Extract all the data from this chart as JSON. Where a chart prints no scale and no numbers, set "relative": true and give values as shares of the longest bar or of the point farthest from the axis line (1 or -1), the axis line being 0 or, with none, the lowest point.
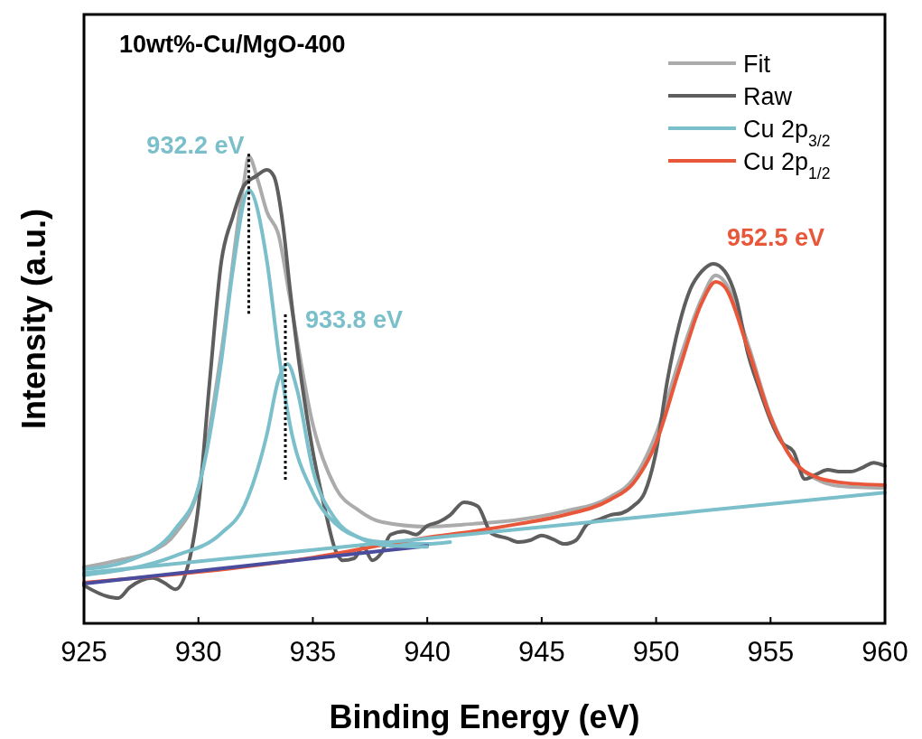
{
  "chart_data": {
    "type": "line",
    "relative": true,
    "xlabel": "Binding Energy (eV)",
    "ylabel": "Intensity (a.u.)",
    "xlim": [
      925,
      960
    ],
    "xticks": [
      925,
      930,
      935,
      940,
      945,
      950,
      955,
      960
    ],
    "legend": "top right",
    "line_style": "solid",
    "annotations": [
      "10wt%-Cu/MgO-400",
      {
        "text": "932.2 eV",
        "x": 932.2,
        "y": 0.928
      },
      {
        "text": "933.8 eV",
        "x": 933.8,
        "y": 0.555
      },
      {
        "text": "952.5 eV",
        "x": 952.5,
        "y": 0.731
      }
    ],
    "series": [
      {
        "name": "Fit",
        "color": "#ababab",
        "x": [
          925,
          926.5,
          928,
          929,
          930,
          931,
          932,
          932.2,
          932.6,
          933,
          933.5,
          934,
          935,
          936,
          937,
          938,
          940,
          942,
          944,
          946,
          948,
          949,
          950,
          951,
          952,
          952.6,
          953,
          954,
          955,
          956,
          957,
          958,
          960
        ],
        "values": [
          0.12,
          0.135,
          0.155,
          0.193,
          0.29,
          0.58,
          0.948,
          1,
          0.948,
          0.88,
          0.832,
          0.696,
          0.426,
          0.29,
          0.242,
          0.217,
          0.207,
          0.213,
          0.222,
          0.24,
          0.271,
          0.309,
          0.406,
          0.561,
          0.696,
          0.745,
          0.731,
          0.6,
          0.445,
          0.348,
          0.309,
          0.294,
          0.29
        ]
      },
      {
        "name": "Raw",
        "color": "#5e5e5e",
        "x": [
          925,
          926,
          926.5,
          927,
          928,
          928.5,
          929,
          929.5,
          930,
          930.5,
          931,
          931.5,
          932,
          932.5,
          933,
          933.3,
          933.7,
          934,
          934.5,
          935,
          935.5,
          936,
          936.3,
          936.8,
          937.2,
          937.6,
          938,
          938.4,
          939,
          939.5,
          940,
          940.5,
          941,
          941.6,
          942.2,
          942.8,
          943.5,
          944,
          944.5,
          945,
          945.5,
          946,
          946.5,
          947,
          947.5,
          948,
          948.5,
          949,
          949.5,
          950,
          950.5,
          951,
          951.5,
          952,
          952.5,
          953,
          953.5,
          954,
          954.5,
          955,
          955.5,
          956,
          956.5,
          957,
          957.5,
          958,
          958.5,
          959,
          959.5,
          960
        ],
        "values": [
          0.081,
          0.058,
          0.054,
          0.077,
          0.097,
          0.087,
          0.073,
          0.116,
          0.251,
          0.522,
          0.774,
          0.87,
          0.938,
          0.957,
          0.971,
          0.957,
          0.851,
          0.716,
          0.522,
          0.368,
          0.251,
          0.155,
          0.135,
          0.139,
          0.164,
          0.135,
          0.151,
          0.19,
          0.197,
          0.19,
          0.209,
          0.217,
          0.232,
          0.259,
          0.251,
          0.193,
          0.182,
          0.174,
          0.178,
          0.188,
          0.18,
          0.17,
          0.178,
          0.213,
          0.222,
          0.232,
          0.236,
          0.251,
          0.28,
          0.368,
          0.522,
          0.638,
          0.716,
          0.754,
          0.77,
          0.754,
          0.696,
          0.58,
          0.503,
          0.435,
          0.387,
          0.368,
          0.309,
          0.319,
          0.329,
          0.325,
          0.325,
          0.333,
          0.344,
          0.337
        ]
      },
      {
        "name": "Cu 2p$_{3/2}$",
        "color": "#7bbfca",
        "x": [
          925,
          927,
          929,
          930,
          931,
          931.5,
          932.2,
          933,
          933.5,
          934,
          935,
          936,
          937,
          938,
          940,
          941
        ],
        "values": [
          0.116,
          0.135,
          0.203,
          0.29,
          0.561,
          0.754,
          0.928,
          0.774,
          0.58,
          0.426,
          0.28,
          0.213,
          0.184,
          0.174,
          0.17,
          0.174
        ]
      },
      {
        "name": "Cu 2p$_{1/2}$",
        "color": "#e8573a",
        "x": [
          925,
          935,
          940,
          942,
          944,
          946,
          948,
          949,
          950,
          951,
          952,
          952.6,
          953,
          954,
          955,
          956,
          957,
          958,
          960
        ],
        "values": [
          0.087,
          0.141,
          0.184,
          0.197,
          0.213,
          0.232,
          0.265,
          0.3,
          0.387,
          0.542,
          0.687,
          0.731,
          0.72,
          0.59,
          0.441,
          0.348,
          0.313,
          0.302,
          0.296
        ]
      },
      {
        "color": "#4a4c9e",
        "x": [
          925,
          940
        ],
        "values": [
          0.085,
          0.166
        ]
      },
      {
        "color": "#7bbfca",
        "x": [
          925,
          929,
          931,
          932,
          933,
          933.5,
          933.9,
          934.3,
          935,
          936,
          937,
          938,
          940
        ],
        "values": [
          0.103,
          0.145,
          0.193,
          0.251,
          0.406,
          0.522,
          0.555,
          0.503,
          0.329,
          0.222,
          0.184,
          0.168,
          0.164
        ]
      },
      {
        "color": "#7bbfca",
        "x": [
          925,
          960
        ],
        "values": [
          0.108,
          0.28
        ]
      }
    ]
  }
}
